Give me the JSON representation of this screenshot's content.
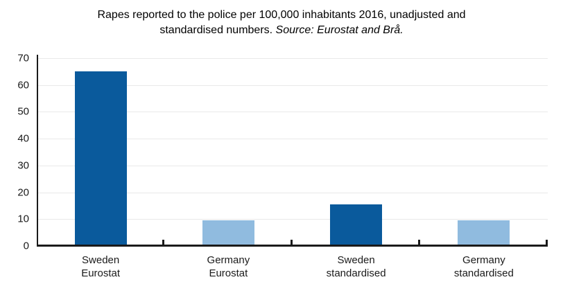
{
  "figure": {
    "title_line1": "Rapes reported to the police per 100,000 inhabitants 2016, unadjusted and",
    "title_line2_plain": "standardised numbers. ",
    "title_line2_source_italic": "Source: Eurostat and Brå."
  },
  "colors": {
    "dark_blue": "#0a5a9c",
    "light_blue": "#90bbdf",
    "gridline": "#e9e9e9",
    "axis": "#1a1a1a",
    "text": "#1a1a1a"
  },
  "chart_data": {
    "type": "bar",
    "title": "Rapes reported to the police per 100,000 inhabitants 2016, unadjusted and standardised numbers. Source: Eurostat and Brå.",
    "categories": [
      "Sweden Eurostat",
      "Germany Eurostat",
      "Sweden standardised",
      "Germany standardised"
    ],
    "category_labels_two_line": [
      [
        "Sweden",
        "Eurostat"
      ],
      [
        "Germany",
        "Eurostat"
      ],
      [
        "Sweden",
        "standardised"
      ],
      [
        "Germany",
        "standardised"
      ]
    ],
    "values": [
      65,
      9.5,
      15.5,
      9.5
    ],
    "bar_colors": [
      "#0a5a9c",
      "#90bbdf",
      "#0a5a9c",
      "#90bbdf"
    ],
    "xlabel": "",
    "ylabel": "",
    "ylim": [
      0,
      70
    ],
    "yticks": [
      0,
      10,
      20,
      30,
      40,
      50,
      60,
      70
    ],
    "grid": "horizontal",
    "legend": "none"
  }
}
